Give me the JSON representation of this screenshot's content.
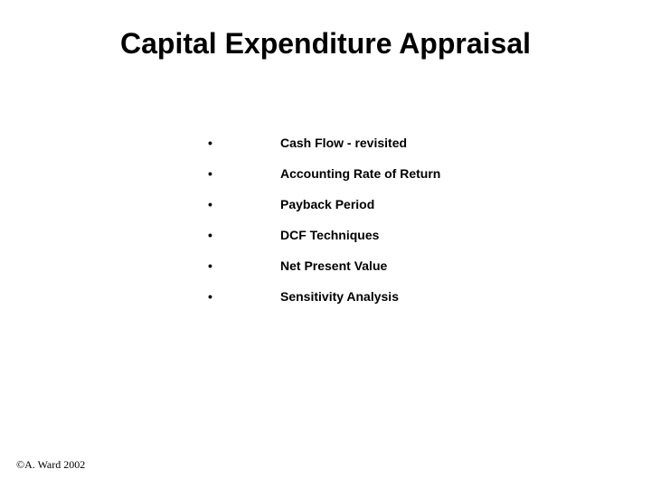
{
  "slide": {
    "title": "Capital Expenditure Appraisal",
    "title_fontsize": 32,
    "title_fontweight": "bold",
    "title_color": "#000000",
    "background_color": "#ffffff",
    "bullets": [
      {
        "marker": "•",
        "text": "Cash Flow - revisited"
      },
      {
        "marker": "•",
        "text": "Accounting Rate of Return"
      },
      {
        "marker": "•",
        "text": "Payback Period"
      },
      {
        "marker": "•",
        "text": "DCF Techniques"
      },
      {
        "marker": "•",
        "text": "Net Present Value"
      },
      {
        "marker": "•",
        "text": "Sensitivity Analysis"
      }
    ],
    "bullet_fontsize": 14,
    "bullet_fontweight": "bold",
    "bullet_color": "#000000",
    "bullet_marker_width": 80,
    "bullet_spacing": 18,
    "footer": "©A. Ward 2002",
    "footer_fontsize": 12,
    "footer_color": "#000000"
  }
}
